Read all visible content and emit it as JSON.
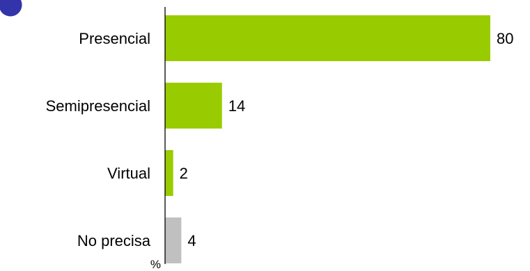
{
  "chart_data": {
    "type": "bar",
    "orientation": "horizontal",
    "categories": [
      "Presencial",
      "Semipresencial",
      "Virtual",
      "No precisa"
    ],
    "values": [
      80,
      14,
      2,
      4
    ],
    "unit": "%",
    "colors": [
      "#99cc00",
      "#99cc00",
      "#99cc00",
      "#c0c0c0"
    ],
    "xlim": [
      0,
      80
    ],
    "grid": false
  },
  "decor": {
    "corner_mark_color": "#3333aa"
  }
}
